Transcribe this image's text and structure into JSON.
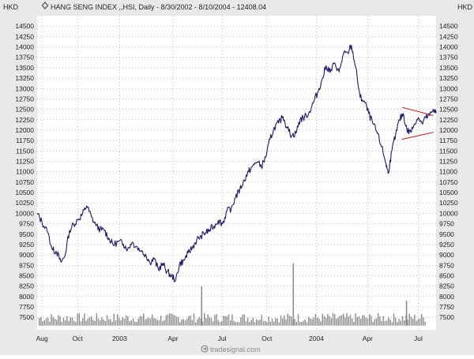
{
  "header": {
    "title": "HANG SENG INDEX ,,HSI, Daily - 8/30/2002 - 8/10/2004 - 12408.04",
    "currency_left": "HKD",
    "currency_right": "HKD"
  },
  "watermark": "tradesignal.com",
  "colors": {
    "background": "#e9e9e9",
    "plot_background": "#ffffff",
    "grid": "#9a9a9a",
    "price": "#1a1a6e",
    "trendline": "#cc2222",
    "volume": "#8c8c8c"
  },
  "icons": {
    "chart_marker": "diamond-icon",
    "watermark_logo": "circle-arrow-icon"
  },
  "chart_data": {
    "type": "line",
    "title": "HANG SENG INDEX ,,HSI, Daily - 8/30/2002 - 8/10/2004 - 12408.04",
    "ylabel": "HKD",
    "ylim": [
      7200,
      14750
    ],
    "grid": true,
    "y_ticks": [
      7500,
      7750,
      8000,
      8250,
      8500,
      8750,
      9000,
      9250,
      9500,
      9750,
      10000,
      10250,
      10500,
      10750,
      11000,
      11250,
      11500,
      11750,
      12000,
      12250,
      12500,
      12750,
      13000,
      13250,
      13500,
      13750,
      14000,
      14250,
      14500
    ],
    "x_labels": [
      "Aug",
      "Oct",
      "2003",
      "Apr",
      "Jul",
      "Oct",
      "2004",
      "Apr",
      "Jul"
    ],
    "x_range": [
      "2002-08-01",
      "2004-08-10"
    ],
    "series": [
      {
        "values": [
          [
            "2002-08-01",
            10000
          ],
          [
            "2002-08-10",
            9790
          ],
          [
            "2002-08-20",
            9550
          ],
          [
            "2002-08-30",
            9120
          ],
          [
            "2002-09-06",
            9080
          ],
          [
            "2002-09-14",
            8830
          ],
          [
            "2002-09-21",
            8950
          ],
          [
            "2002-09-30",
            9590
          ],
          [
            "2002-10-08",
            9750
          ],
          [
            "2002-10-16",
            9840
          ],
          [
            "2002-10-24",
            9980
          ],
          [
            "2002-11-01",
            10180
          ],
          [
            "2002-11-10",
            9910
          ],
          [
            "2002-11-18",
            9700
          ],
          [
            "2002-11-26",
            9620
          ],
          [
            "2002-12-04",
            9580
          ],
          [
            "2002-12-12",
            9410
          ],
          [
            "2002-12-20",
            9240
          ],
          [
            "2002-12-31",
            9330
          ],
          [
            "2003-01-08",
            9260
          ],
          [
            "2003-01-16",
            9150
          ],
          [
            "2003-01-24",
            9300
          ],
          [
            "2003-02-01",
            9210
          ],
          [
            "2003-02-10",
            9080
          ],
          [
            "2003-02-18",
            9020
          ],
          [
            "2003-02-26",
            8830
          ],
          [
            "2003-03-06",
            8900
          ],
          [
            "2003-03-14",
            8650
          ],
          [
            "2003-03-22",
            8800
          ],
          [
            "2003-03-30",
            8600
          ],
          [
            "2003-04-07",
            8500
          ],
          [
            "2003-04-15",
            8400
          ],
          [
            "2003-04-22",
            8780
          ],
          [
            "2003-04-30",
            8870
          ],
          [
            "2003-05-08",
            9050
          ],
          [
            "2003-05-16",
            9180
          ],
          [
            "2003-05-24",
            9360
          ],
          [
            "2003-06-01",
            9460
          ],
          [
            "2003-06-09",
            9530
          ],
          [
            "2003-06-17",
            9600
          ],
          [
            "2003-06-25",
            9700
          ],
          [
            "2003-07-03",
            9830
          ],
          [
            "2003-07-11",
            9750
          ],
          [
            "2003-07-19",
            10050
          ],
          [
            "2003-07-27",
            10120
          ],
          [
            "2003-08-04",
            10380
          ],
          [
            "2003-08-12",
            10570
          ],
          [
            "2003-08-20",
            10800
          ],
          [
            "2003-08-28",
            11000
          ],
          [
            "2003-09-05",
            11140
          ],
          [
            "2003-09-13",
            11240
          ],
          [
            "2003-09-21",
            11120
          ],
          [
            "2003-09-29",
            11350
          ],
          [
            "2003-10-07",
            11780
          ],
          [
            "2003-10-15",
            12070
          ],
          [
            "2003-10-23",
            12170
          ],
          [
            "2003-10-31",
            12330
          ],
          [
            "2003-11-08",
            12050
          ],
          [
            "2003-11-16",
            11860
          ],
          [
            "2003-11-24",
            11930
          ],
          [
            "2003-12-02",
            12260
          ],
          [
            "2003-12-10",
            12310
          ],
          [
            "2003-12-18",
            12420
          ],
          [
            "2003-12-26",
            12650
          ],
          [
            "2004-01-03",
            12900
          ],
          [
            "2004-01-11",
            13200
          ],
          [
            "2004-01-19",
            13550
          ],
          [
            "2004-01-27",
            13400
          ],
          [
            "2004-02-04",
            13620
          ],
          [
            "2004-02-12",
            13400
          ],
          [
            "2004-02-20",
            13820
          ],
          [
            "2004-02-28",
            13860
          ],
          [
            "2004-03-06",
            14040
          ],
          [
            "2004-03-14",
            13500
          ],
          [
            "2004-03-22",
            12790
          ],
          [
            "2004-03-30",
            12700
          ],
          [
            "2004-04-07",
            12400
          ],
          [
            "2004-04-15",
            12150
          ],
          [
            "2004-04-23",
            11920
          ],
          [
            "2004-05-01",
            11600
          ],
          [
            "2004-05-09",
            11200
          ],
          [
            "2004-05-13",
            10960
          ],
          [
            "2004-05-20",
            11500
          ],
          [
            "2004-05-27",
            11900
          ],
          [
            "2004-06-03",
            12250
          ],
          [
            "2004-06-10",
            12400
          ],
          [
            "2004-06-17",
            12000
          ],
          [
            "2004-06-24",
            11950
          ],
          [
            "2004-07-01",
            12150
          ],
          [
            "2004-07-08",
            12300
          ],
          [
            "2004-07-15",
            12160
          ],
          [
            "2004-07-22",
            12300
          ],
          [
            "2004-07-29",
            12350
          ],
          [
            "2004-08-05",
            12500
          ],
          [
            "2004-08-10",
            12408
          ]
        ]
      }
    ],
    "volume_bars": [
      {
        "date": "2003-06-01",
        "level": 8250
      },
      {
        "date": "2003-11-18",
        "level": 8800
      },
      {
        "date": "2004-06-15",
        "level": 7900
      }
    ],
    "volume_baseline": 7300,
    "trendlines": [
      {
        "from": [
          "2004-06-08",
          12550
        ],
        "to": [
          "2004-08-05",
          12350
        ]
      },
      {
        "from": [
          "2004-06-08",
          11780
        ],
        "to": [
          "2004-08-05",
          11950
        ]
      }
    ]
  }
}
